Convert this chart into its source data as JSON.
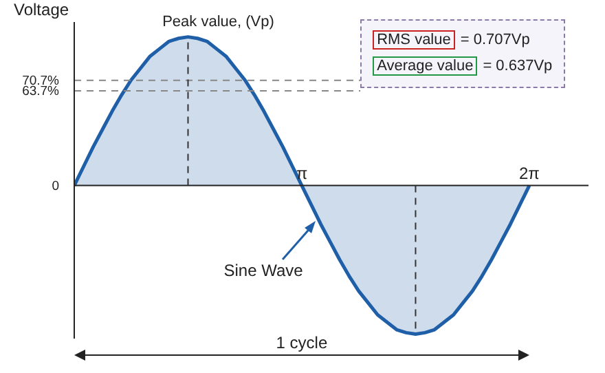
{
  "chart_data": {
    "type": "area",
    "ylabel": "Voltage",
    "x": [
      0,
      0.1309,
      0.2618,
      0.3927,
      0.5236,
      0.6545,
      0.7854,
      0.9163,
      1.0472,
      1.1781,
      1.309,
      1.4399,
      1.5708,
      1.7017,
      1.8326,
      1.9635,
      2.0944,
      2.2253,
      2.3562,
      2.4871,
      2.618,
      2.7489,
      2.8798,
      3.0107,
      3.1416,
      3.2725,
      3.4034,
      3.5343,
      3.6652,
      3.7961,
      3.927,
      4.0579,
      4.1888,
      4.3197,
      4.4506,
      4.5815,
      4.7124,
      4.8433,
      4.9742,
      5.1051,
      5.236,
      5.3669,
      5.4978,
      5.6287,
      5.7596,
      5.8905,
      6.0214,
      6.1523,
      6.2832
    ],
    "series": [
      {
        "color": "#1f5fa8",
        "values": [
          0,
          13,
          26,
          38,
          50,
          61,
          71,
          79,
          87,
          92,
          97,
          99,
          100,
          99,
          97,
          92,
          87,
          79,
          71,
          61,
          50,
          38,
          26,
          13,
          0,
          -13,
          -26,
          -38,
          -50,
          -61,
          -71,
          -79,
          -87,
          -92,
          -97,
          -99,
          -100,
          -99,
          -97,
          -92,
          -87,
          -79,
          -71,
          -61,
          -50,
          -38,
          -26,
          -13,
          0
        ]
      }
    ],
    "xlim": [
      0,
      7.1
    ],
    "ylim": [
      -103,
      110
    ],
    "xticks": [
      {
        "value": 0,
        "label": null
      },
      {
        "value": 3.1416,
        "label": "π"
      },
      {
        "value": 6.2832,
        "label": "2π"
      }
    ],
    "yticks": [
      {
        "value": 0,
        "label": "0"
      },
      {
        "value": 63.7,
        "label": "63.7%"
      },
      {
        "value": 70.7,
        "label": "70.7%"
      }
    ],
    "ref_lines": [
      {
        "axis": "y",
        "value": 70.7,
        "color": "#888888",
        "line_style": "dashed"
      },
      {
        "axis": "y",
        "value": 63.7,
        "color": "#888888",
        "line_style": "dashed"
      },
      {
        "axis": "x",
        "value": 1.5708,
        "color": "#333333",
        "line_style": "dashed"
      },
      {
        "axis": "x",
        "value": 4.7124,
        "color": "#333333",
        "line_style": "dashed"
      }
    ],
    "annotations": [
      {
        "text": "Peak value, (Vp)",
        "x": 1.5708,
        "y": 100
      },
      {
        "text": "Sine Wave",
        "x": 3.37,
        "y": -22
      },
      "RMS value = 0.707Vp",
      "Average value = 0.637Vp",
      "1 cycle"
    ],
    "grid": false,
    "legend": false,
    "marker": "none",
    "line_style": "solid"
  }
}
